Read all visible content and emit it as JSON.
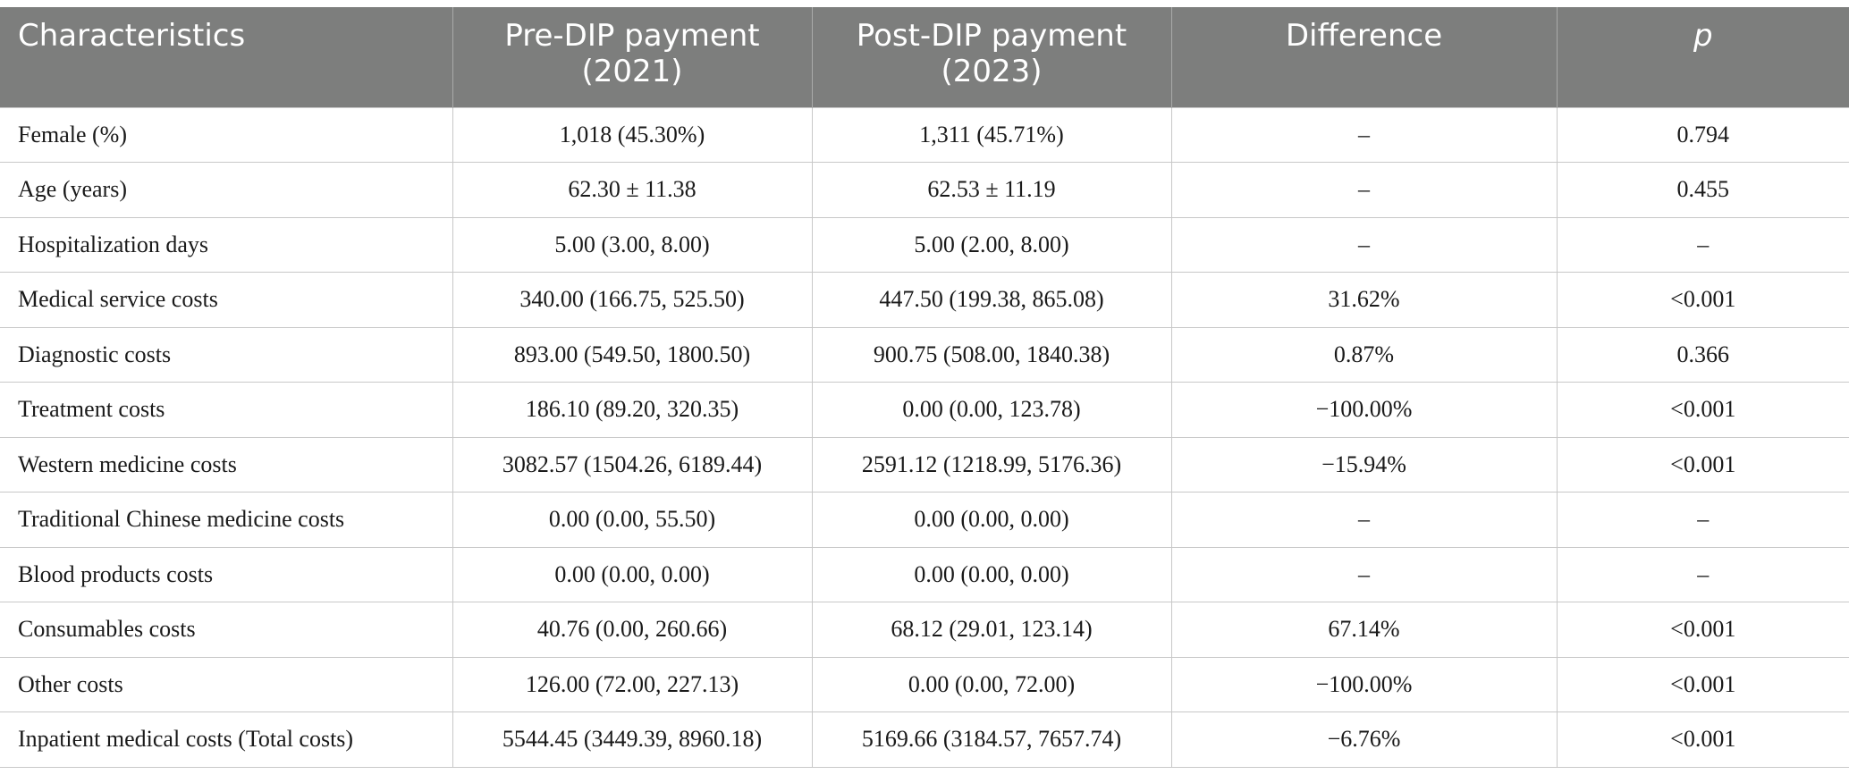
{
  "table": {
    "headers": [
      "Characteristics",
      "Pre-DIP payment (2021)",
      "Post-DIP payment (2023)",
      "Difference",
      "p"
    ],
    "rows": [
      [
        "Female (%)",
        "1,018 (45.30%)",
        "1,311 (45.71%)",
        "–",
        "0.794"
      ],
      [
        "Age (years)",
        "62.30 ± 11.38",
        "62.53 ± 11.19",
        "–",
        "0.455"
      ],
      [
        "Hospitalization days",
        "5.00 (3.00, 8.00)",
        "5.00 (2.00, 8.00)",
        "–",
        "–"
      ],
      [
        "Medical service costs",
        "340.00 (166.75, 525.50)",
        "447.50 (199.38, 865.08)",
        "31.62%",
        "<0.001"
      ],
      [
        "Diagnostic costs",
        "893.00 (549.50, 1800.50)",
        "900.75 (508.00, 1840.38)",
        "0.87%",
        "0.366"
      ],
      [
        "Treatment costs",
        "186.10 (89.20, 320.35)",
        "0.00 (0.00, 123.78)",
        "−100.00%",
        "<0.001"
      ],
      [
        "Western medicine costs",
        "3082.57 (1504.26, 6189.44)",
        "2591.12 (1218.99, 5176.36)",
        "−15.94%",
        "<0.001"
      ],
      [
        "Traditional Chinese medicine costs",
        "0.00 (0.00, 55.50)",
        "0.00 (0.00, 0.00)",
        "–",
        "–"
      ],
      [
        "Blood products costs",
        "0.00 (0.00, 0.00)",
        "0.00 (0.00, 0.00)",
        "–",
        "–"
      ],
      [
        "Consumables costs",
        "40.76 (0.00, 260.66)",
        "68.12 (29.01, 123.14)",
        "67.14%",
        "<0.001"
      ],
      [
        "Other costs",
        "126.00 (72.00, 227.13)",
        "0.00 (0.00, 72.00)",
        "−100.00%",
        "<0.001"
      ],
      [
        "Inpatient medical costs (Total costs)",
        "5544.45 (3449.39, 8960.18)",
        "5169.66 (3184.57, 7657.74)",
        "−6.76%",
        "<0.001"
      ]
    ]
  }
}
